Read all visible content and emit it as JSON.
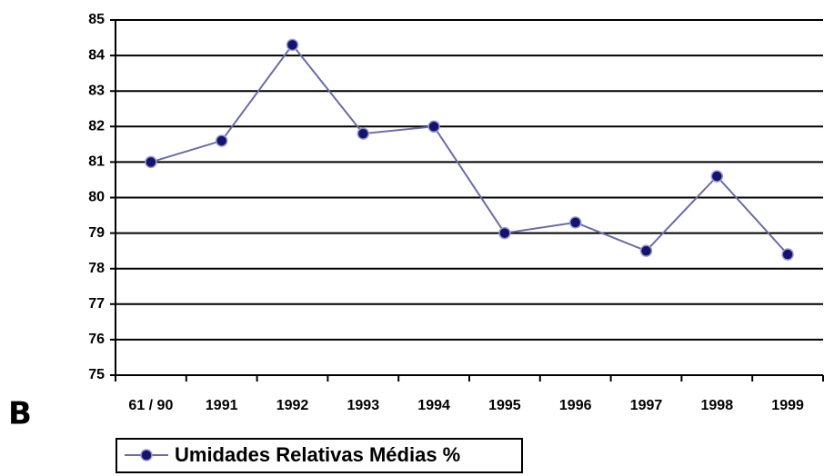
{
  "chart_data": {
    "type": "line",
    "panel_label": "B",
    "categories": [
      "61 / 90",
      "1991",
      "1992",
      "1993",
      "1994",
      "1995",
      "1996",
      "1997",
      "1998",
      "1999"
    ],
    "series": [
      {
        "name": "Umidades Relativas Médias %",
        "color": "#6b6ba8",
        "marker_color": "#14146e",
        "values": [
          81,
          81.6,
          84.3,
          81.8,
          82,
          79,
          79.3,
          78.5,
          80.6,
          78.4
        ]
      }
    ],
    "ylim": [
      75,
      85
    ],
    "yticks": [
      75,
      76,
      77,
      78,
      79,
      80,
      81,
      82,
      83,
      84,
      85
    ],
    "grid": true,
    "legend": "bottom"
  }
}
